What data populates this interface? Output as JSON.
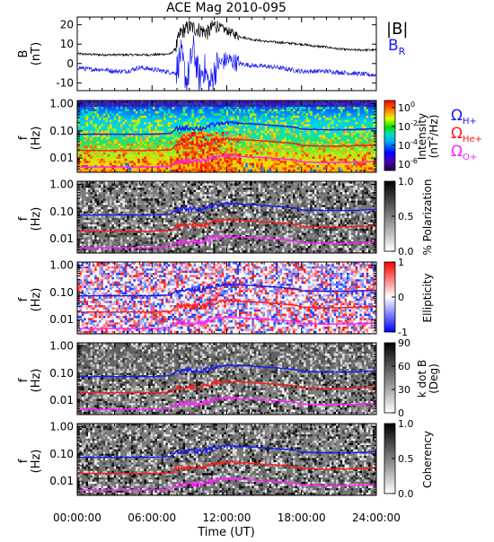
{
  "title": "ACE Mag 2010-095",
  "x_axis": {
    "label": "Time (UT)",
    "range": [
      "00:00:00",
      "24:00:00"
    ],
    "ticks": [
      {
        "value": 0,
        "label": "00:00:00"
      },
      {
        "value": 6,
        "label": "06:00:00"
      },
      {
        "value": 12,
        "label": "12:00:00"
      },
      {
        "value": 18,
        "label": "18:00:00"
      },
      {
        "value": 24,
        "label": "24:00:00"
      }
    ],
    "minor_tick_step_hours": 1
  },
  "colors": {
    "b_total": "#000000",
    "b_r": "#1a1aee",
    "he_cyclotron": "#ff1a1a",
    "o_cyclotron": "#ff22ff",
    "axis": "#000000"
  },
  "freq_ticks": [
    "1.00",
    "0.10",
    "0.01"
  ],
  "panels": {
    "mag": {
      "ylabel_1": "B",
      "ylabel_2": "(nT)",
      "yticks": [
        "20",
        "10",
        "0",
        "-10"
      ],
      "legend_total": "|B|",
      "legend_br_main": "B",
      "legend_br_sub": "R"
    },
    "intensity": {
      "ylabel_1": "f",
      "ylabel_2": "(Hz)",
      "cbar_labels": [
        {
          "base": "10",
          "exp": "0"
        },
        {
          "base": "10",
          "exp": "-2"
        },
        {
          "base": "10",
          "exp": "-4"
        },
        {
          "base": "10",
          "exp": "-6"
        }
      ],
      "cbar_title_1": "Intensity",
      "cbar_title_2_pre": "(nT",
      "cbar_title_2_sup": "2",
      "cbar_title_2_post": "/Hz)",
      "legend": [
        {
          "omega": "Ω",
          "sub": "H+"
        },
        {
          "omega": "Ω",
          "sub": "He+"
        },
        {
          "omega": "Ω",
          "sub": "O+"
        }
      ]
    },
    "polarization": {
      "ylabel_1": "f",
      "ylabel_2": "(Hz)",
      "cbar_labels": [
        "1.0",
        "0.5",
        "0.0"
      ],
      "cbar_title": "% Polarization"
    },
    "ellipticity": {
      "ylabel_1": "f",
      "ylabel_2": "(Hz)",
      "cbar_labels": [
        "1",
        "0",
        "-1"
      ],
      "cbar_title": "Ellipticity"
    },
    "kdotb": {
      "ylabel_1": "f",
      "ylabel_2": "(Hz)",
      "cbar_labels": [
        "90",
        "60",
        "30",
        "0"
      ],
      "cbar_title_1": "k dot B",
      "cbar_title_2": "(Deg)"
    },
    "coherency": {
      "ylabel_1": "f",
      "ylabel_2": "(Hz)",
      "cbar_labels": [
        "1.0",
        "0.5",
        "0.0"
      ],
      "cbar_title": "Coherency"
    }
  },
  "chart_data": [
    {
      "type": "line",
      "title": "ACE Mag 2010-095",
      "xlabel": "Time (UT)",
      "ylabel": "B (nT)",
      "xlim": [
        0,
        24
      ],
      "ylim": [
        -14,
        24
      ],
      "series": [
        {
          "name": "|B|",
          "x": [
            0,
            2,
            4,
            6,
            7.5,
            7.9,
            8.3,
            9,
            10,
            10.5,
            11,
            12,
            13,
            14,
            15,
            16,
            17,
            18,
            19,
            20,
            21,
            22,
            23,
            24
          ],
          "values": [
            5,
            4.5,
            4.5,
            4.5,
            5,
            8,
            16,
            19,
            17,
            16,
            20,
            17,
            14,
            12.5,
            11.5,
            11,
            10.5,
            10,
            9,
            8.5,
            7.5,
            7,
            7,
            7
          ]
        },
        {
          "name": "B_R",
          "x": [
            0,
            1,
            2,
            3,
            4,
            5,
            6,
            7,
            7.9,
            8.3,
            8.8,
            9.3,
            9.8,
            10.2,
            10.6,
            11.2,
            12,
            13,
            14,
            16,
            18,
            19,
            20,
            22,
            24
          ],
          "values": [
            -2,
            -3,
            -3,
            -4,
            -4,
            -2,
            -3,
            -4,
            -5,
            5,
            -10,
            8,
            -8,
            -2,
            -12,
            -1,
            2,
            0,
            -1,
            -2,
            -4,
            -4,
            -4,
            -5,
            -6
          ]
        }
      ]
    },
    {
      "type": "heatmap",
      "title": "Intensity",
      "xlabel": "Time (UT)",
      "ylabel": "f (Hz)",
      "xlim": [
        0,
        24
      ],
      "ylim": [
        0.003,
        1.3
      ],
      "yscale": "log",
      "colorbar": {
        "label": "Intensity (nT^2/Hz)",
        "scale": "log",
        "range": [
          1e-06,
          1
        ],
        "ticks": [
          "10^0",
          "10^-2",
          "10^-4",
          "10^-6"
        ]
      },
      "series": [
        {
          "name": "ΩH+",
          "x": [
            0,
            3,
            6,
            7.5,
            8,
            9,
            10,
            11,
            12,
            14,
            16,
            17.5,
            18,
            20,
            22,
            24
          ],
          "values": [
            0.075,
            0.075,
            0.075,
            0.08,
            0.12,
            0.13,
            0.12,
            0.17,
            0.2,
            0.18,
            0.155,
            0.135,
            0.115,
            0.11,
            0.11,
            0.12
          ]
        },
        {
          "name": "ΩHe+",
          "x": [
            0,
            3,
            6,
            7.5,
            8,
            9,
            10,
            11,
            12,
            14,
            16,
            17.5,
            18,
            20,
            22,
            24
          ],
          "values": [
            0.019,
            0.019,
            0.019,
            0.02,
            0.03,
            0.033,
            0.03,
            0.043,
            0.05,
            0.045,
            0.039,
            0.034,
            0.029,
            0.027,
            0.028,
            0.03
          ]
        },
        {
          "name": "ΩO+",
          "x": [
            0,
            3,
            6,
            7.5,
            8,
            9,
            10,
            11,
            12,
            14,
            16,
            17.5,
            18,
            20,
            22,
            24
          ],
          "values": [
            0.0047,
            0.0047,
            0.0047,
            0.005,
            0.0075,
            0.008,
            0.0075,
            0.011,
            0.0125,
            0.011,
            0.0097,
            0.0085,
            0.0072,
            0.0068,
            0.007,
            0.0075
          ]
        }
      ]
    },
    {
      "type": "heatmap",
      "title": "% Polarization",
      "xlabel": "Time (UT)",
      "ylabel": "f (Hz)",
      "xlim": [
        0,
        24
      ],
      "ylim": [
        0.003,
        1.3
      ],
      "yscale": "log",
      "colorbar": {
        "label": "% Polarization",
        "range": [
          0,
          1
        ],
        "ticks": [
          "1.0",
          "0.5",
          "0.0"
        ]
      }
    },
    {
      "type": "heatmap",
      "title": "Ellipticity",
      "xlabel": "Time (UT)",
      "ylabel": "f (Hz)",
      "xlim": [
        0,
        24
      ],
      "ylim": [
        0.003,
        1.3
      ],
      "yscale": "log",
      "colorbar": {
        "label": "Ellipticity",
        "range": [
          -1,
          1
        ],
        "ticks": [
          "1",
          "0",
          "-1"
        ]
      }
    },
    {
      "type": "heatmap",
      "title": "k dot B",
      "xlabel": "Time (UT)",
      "ylabel": "f (Hz)",
      "xlim": [
        0,
        24
      ],
      "ylim": [
        0.003,
        1.3
      ],
      "yscale": "log",
      "colorbar": {
        "label": "k dot B (Deg)",
        "range": [
          0,
          90
        ],
        "ticks": [
          "90",
          "60",
          "30",
          "0"
        ]
      }
    },
    {
      "type": "heatmap",
      "title": "Coherency",
      "xlabel": "Time (UT)",
      "ylabel": "f (Hz)",
      "xlim": [
        0,
        24
      ],
      "ylim": [
        0.003,
        1.3
      ],
      "yscale": "log",
      "colorbar": {
        "label": "Coherency",
        "range": [
          0,
          1
        ],
        "ticks": [
          "1.0",
          "0.5",
          "0.0"
        ]
      }
    }
  ]
}
